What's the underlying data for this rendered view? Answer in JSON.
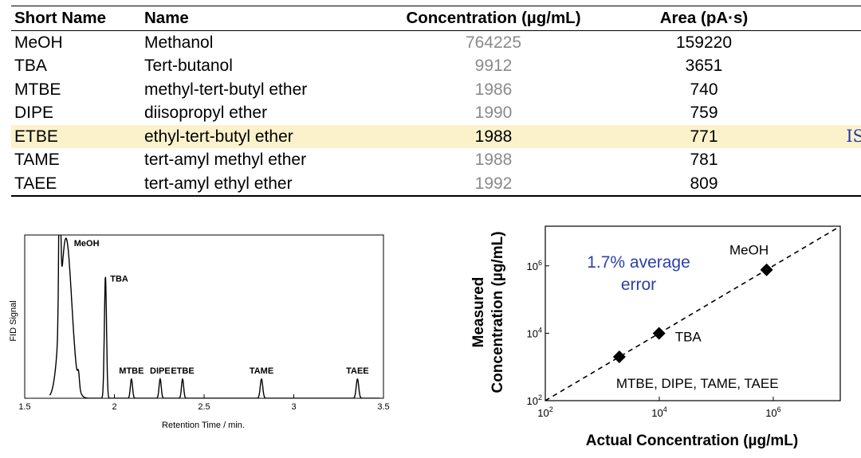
{
  "table": {
    "headers": [
      "Short Name",
      "Name",
      "Concentration (µg/mL)",
      "Area (pA·s)"
    ],
    "rows": [
      {
        "short": "MeOH",
        "name": "Methanol",
        "conc": "764225",
        "area": "159220",
        "note": "",
        "highlight": false
      },
      {
        "short": "TBA",
        "name": "Tert-butanol",
        "conc": "9912",
        "area": "3651",
        "note": "",
        "highlight": false
      },
      {
        "short": "MTBE",
        "name": "methyl-tert-butyl ether",
        "conc": "1986",
        "area": "740",
        "note": "",
        "highlight": false
      },
      {
        "short": "DIPE",
        "name": "diisopropyl ether",
        "conc": "1990",
        "area": "759",
        "note": "",
        "highlight": false
      },
      {
        "short": "ETBE",
        "name": "ethyl-tert-butyl ether",
        "conc": "1988",
        "area": "771",
        "note": "IS",
        "highlight": true
      },
      {
        "short": "TAME",
        "name": "tert-amyl methyl ether",
        "conc": "1988",
        "area": "781",
        "note": "",
        "highlight": false
      },
      {
        "short": "TAEE",
        "name": "tert-amyl ethyl ether",
        "conc": "1992",
        "area": "809",
        "note": "",
        "highlight": false
      }
    ],
    "highlight_color": "#fbf2cc",
    "note_color": "#1f3aa8"
  },
  "chart_data": [
    {
      "type": "line",
      "xlabel": "Retention Time / min.",
      "ylabel": "FID Signal",
      "xlim": [
        1.5,
        3.5
      ],
      "ylim": [
        0,
        1
      ],
      "xticks": [
        1.5,
        2,
        2.5,
        3,
        3.5
      ],
      "xtick_labels": [
        "1.5",
        "2",
        "2.5",
        "3",
        "3.5"
      ],
      "grid": false,
      "peaks": [
        {
          "label": "",
          "rt": 1.695,
          "height": 1.0,
          "width": 0.005
        },
        {
          "label": "MeOH",
          "rt": 1.73,
          "height": 0.98,
          "width": 0.032
        },
        {
          "label": "",
          "rt": 1.8,
          "height": 0.08,
          "width": 0.005
        },
        {
          "label": "TBA",
          "rt": 1.95,
          "height": 0.745,
          "width": 0.006
        },
        {
          "label": "MTBE",
          "rt": 2.095,
          "height": 0.118,
          "width": 0.006
        },
        {
          "label": "DIPE",
          "rt": 2.255,
          "height": 0.118,
          "width": 0.006
        },
        {
          "label": "ETBE",
          "rt": 2.38,
          "height": 0.118,
          "width": 0.006
        },
        {
          "label": "TAME",
          "rt": 2.82,
          "height": 0.118,
          "width": 0.007
        },
        {
          "label": "TAEE",
          "rt": 3.355,
          "height": 0.118,
          "width": 0.007
        }
      ]
    },
    {
      "type": "scatter",
      "xlabel": "Actual Concentration (µg/mL)",
      "ylabel": "Measured Concentration (µg/mL)",
      "ylabel_lines": [
        "Measured",
        "Concentration (µg/mL)"
      ],
      "xscale": "log",
      "yscale": "log",
      "xlim": [
        100,
        15000000
      ],
      "ylim": [
        100,
        15000000
      ],
      "ticks": [
        100,
        10000,
        1000000
      ],
      "tick_labels": [
        "10^2",
        "10^4",
        "10^6"
      ],
      "grid": false,
      "points": [
        {
          "label": "MeOH",
          "x": 764225,
          "y": 764225
        },
        {
          "label": "TBA",
          "x": 9912,
          "y": 9912
        },
        {
          "label": "MTBE, DIPE, TAME, TAEE",
          "x": 1990,
          "y": 1990
        }
      ],
      "reference_line": "y = x (dashed)",
      "annotation": {
        "line1": "1.7% average",
        "line2": "error",
        "color": "#2b41a8"
      }
    }
  ]
}
